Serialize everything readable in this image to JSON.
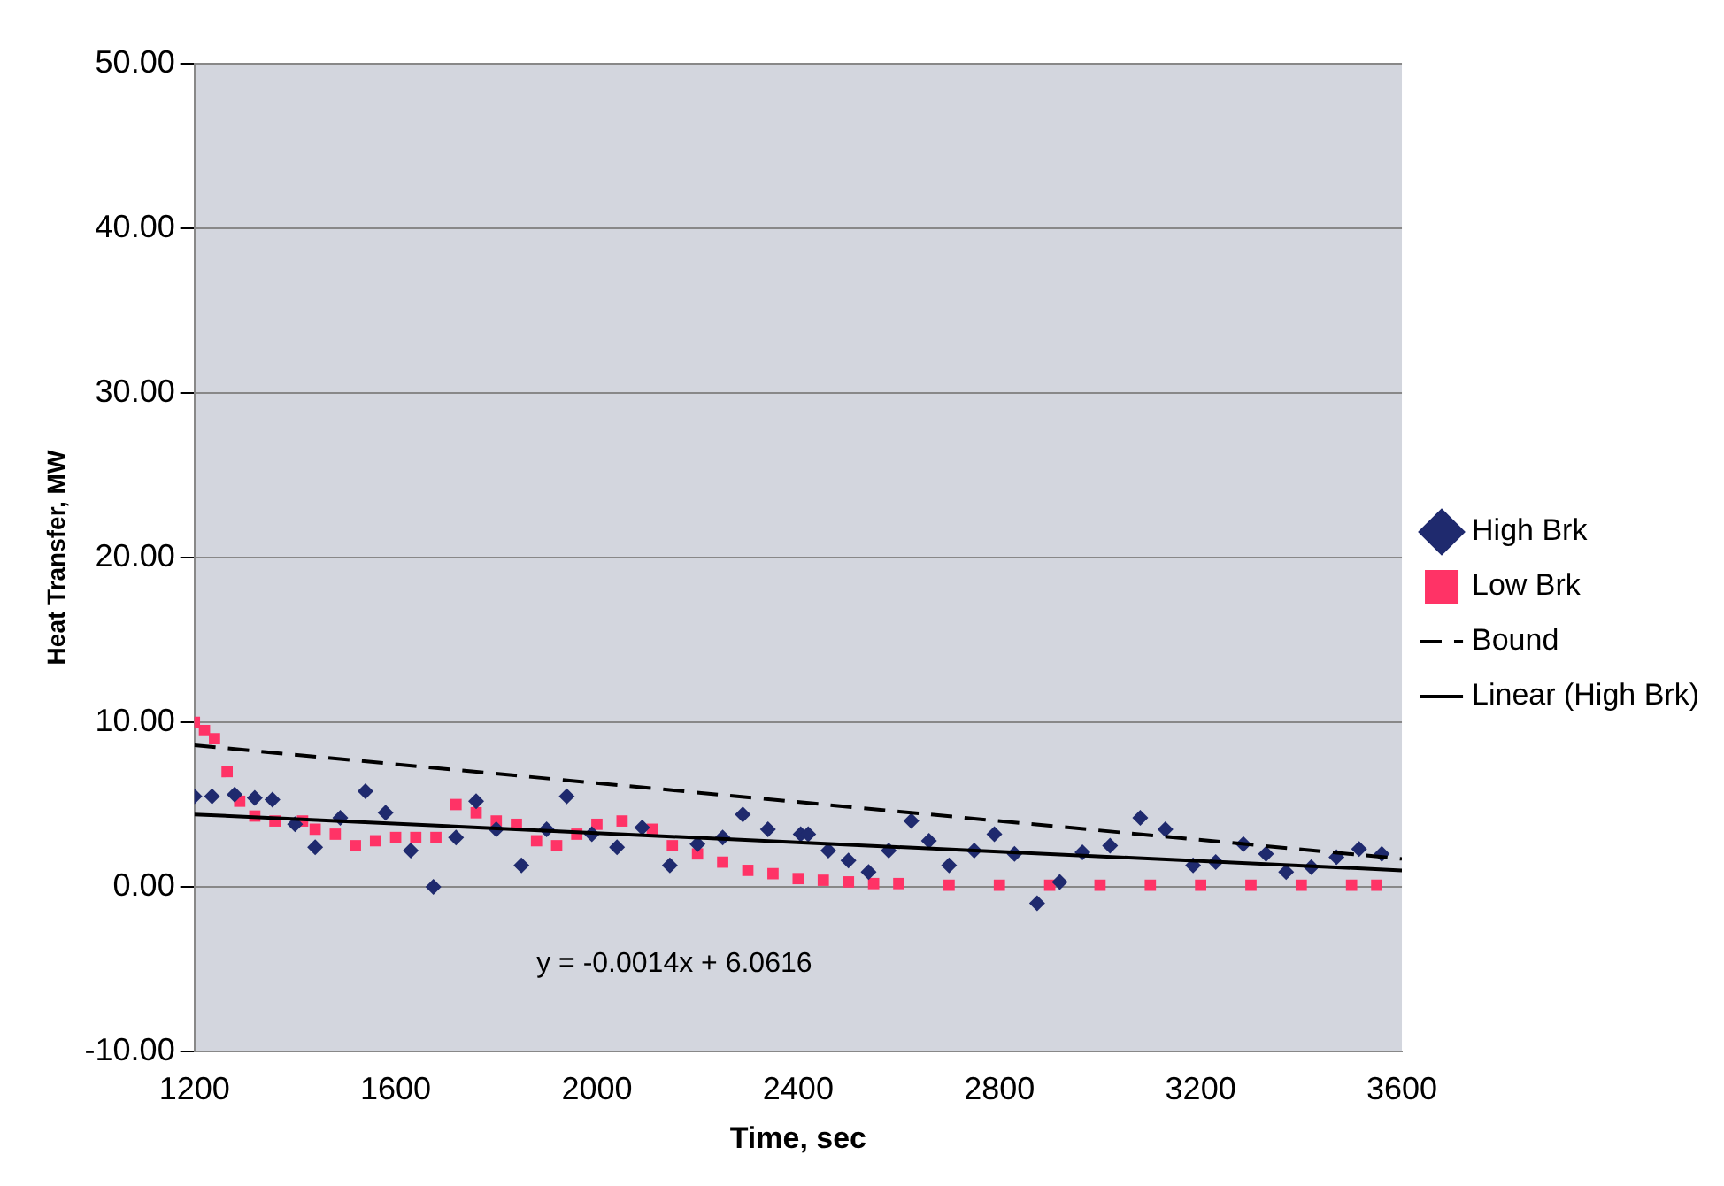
{
  "chart_data": {
    "type": "scatter",
    "xlabel": "Time, sec",
    "ylabel": "Heat Transfer, MW",
    "xlim": [
      1200,
      3600
    ],
    "xticks": [
      1200,
      1600,
      2000,
      2400,
      2800,
      3200,
      3600
    ],
    "ylim": [
      -10,
      50
    ],
    "yticks": [
      {
        "value": -10,
        "label": "-10.00"
      },
      {
        "value": 0,
        "label": "0.00"
      },
      {
        "value": 10,
        "label": "10.00"
      },
      {
        "value": 20,
        "label": "20.00"
      },
      {
        "value": 30,
        "label": "30.00"
      },
      {
        "value": 40,
        "label": "40.00"
      },
      {
        "value": 50,
        "label": "50.00"
      }
    ],
    "grid": "y",
    "legend": "right",
    "annotations": [
      "y = -0.0014x + 6.0616"
    ],
    "series": [
      {
        "name": "High Brk",
        "type": "scatter",
        "marker": "diamond",
        "color": "#1f2a6e",
        "x": [
          1200,
          1235,
          1280,
          1320,
          1355,
          1400,
          1440,
          1490,
          1540,
          1580,
          1630,
          1675,
          1720,
          1760,
          1800,
          1850,
          1900,
          1940,
          1990,
          2040,
          2090,
          2145,
          2200,
          2250,
          2290,
          2340,
          2405,
          2420,
          2460,
          2500,
          2540,
          2580,
          2625,
          2660,
          2700,
          2750,
          2790,
          2830,
          2875,
          2920,
          2965,
          3020,
          3080,
          3130,
          3185,
          3230,
          3285,
          3330,
          3370,
          3420,
          3470,
          3515,
          3560
        ],
        "values": [
          5.5,
          5.5,
          5.6,
          5.4,
          5.3,
          3.8,
          2.4,
          4.2,
          5.8,
          4.5,
          2.2,
          0,
          3.0,
          5.2,
          3.5,
          1.3,
          3.5,
          5.5,
          3.2,
          2.4,
          3.6,
          1.3,
          2.6,
          3.0,
          4.4,
          3.5,
          3.2,
          3.2,
          2.2,
          1.6,
          0.9,
          2.2,
          4.0,
          2.8,
          1.3,
          2.2,
          3.2,
          2.0,
          -1,
          0.3,
          2.1,
          2.5,
          4.2,
          3.5,
          1.3,
          1.5,
          2.6,
          2.0,
          0.9,
          1.2,
          1.8,
          2.3,
          2.0
        ]
      },
      {
        "name": "Low Brk",
        "type": "scatter",
        "marker": "square",
        "color": "#ff3366",
        "x": [
          1200,
          1220,
          1240,
          1265,
          1290,
          1320,
          1360,
          1415,
          1440,
          1480,
          1520,
          1560,
          1600,
          1640,
          1680,
          1720,
          1760,
          1800,
          1840,
          1880,
          1920,
          1960,
          2000,
          2050,
          2110,
          2150,
          2200,
          2250,
          2300,
          2350,
          2400,
          2450,
          2500,
          2550,
          2600,
          2700,
          2800,
          2900,
          3000,
          3100,
          3200,
          3300,
          3400,
          3500,
          3550
        ],
        "values": [
          10,
          9.5,
          9,
          7,
          5.2,
          4.3,
          4,
          4,
          3.5,
          3.2,
          2.5,
          2.8,
          3,
          3,
          3,
          5,
          4.5,
          4,
          3.8,
          2.8,
          2.5,
          3.2,
          3.8,
          4,
          3.5,
          2.5,
          2,
          1.5,
          1,
          0.8,
          0.5,
          0.4,
          0.3,
          0.2,
          0.2,
          0.1,
          0.1,
          0.1,
          0.1,
          0.1,
          0.1,
          0.1,
          0.1,
          0.1,
          0.1
        ]
      },
      {
        "name": "Bound",
        "type": "line",
        "marker": "none",
        "line_style": "dashed",
        "color": "#000000",
        "x": [
          1200,
          3600
        ],
        "values": [
          8.6,
          1.7
        ]
      },
      {
        "name": "Linear (High Brk)",
        "type": "line",
        "marker": "none",
        "line_style": "solid",
        "color": "#000000",
        "x": [
          1200,
          3600
        ],
        "values": [
          4.4,
          1.0
        ]
      }
    ]
  }
}
